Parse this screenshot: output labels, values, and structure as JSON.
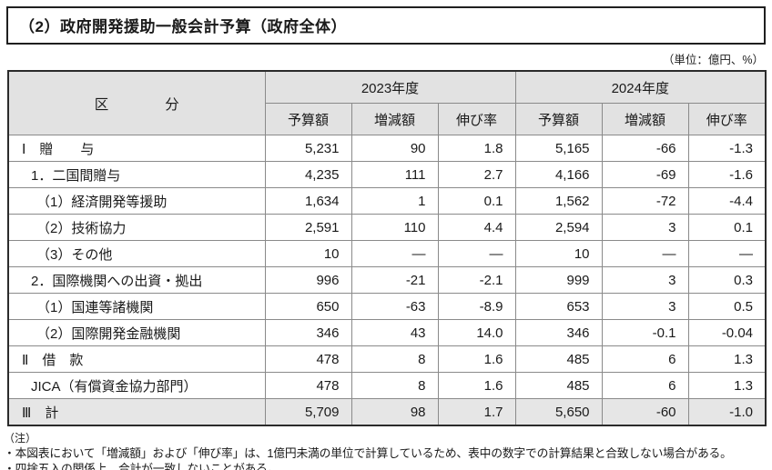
{
  "title": "（2）政府開発援助一般会計予算（政府全体）",
  "unit_label": "（単位：億円、%）",
  "table": {
    "category_header": "区　　　　分",
    "year_2023": "2023年度",
    "year_2024": "2024年度",
    "sub_headers": [
      "予算額",
      "増減額",
      "伸び率"
    ],
    "rows": [
      {
        "label": "Ⅰ　贈　　与",
        "indent": 0,
        "section_start": false,
        "total": false,
        "values": [
          "5,231",
          "90",
          "1.8",
          "5,165",
          "-66",
          "-1.3"
        ]
      },
      {
        "label": "1．二国間贈与",
        "indent": 1,
        "section_start": false,
        "total": false,
        "values": [
          "4,235",
          "111",
          "2.7",
          "4,166",
          "-69",
          "-1.6"
        ]
      },
      {
        "label": "（1）経済開発等援助",
        "indent": 2,
        "section_start": false,
        "total": false,
        "values": [
          "1,634",
          "1",
          "0.1",
          "1,562",
          "-72",
          "-4.4"
        ]
      },
      {
        "label": "（2）技術協力",
        "indent": 2,
        "section_start": false,
        "total": false,
        "values": [
          "2,591",
          "110",
          "4.4",
          "2,594",
          "3",
          "0.1"
        ]
      },
      {
        "label": "（3）その他",
        "indent": 2,
        "section_start": false,
        "total": false,
        "values": [
          "10",
          "—",
          "—",
          "10",
          "—",
          "—"
        ]
      },
      {
        "label": "2．国際機関への出資・拠出",
        "indent": 1,
        "section_start": false,
        "total": false,
        "values": [
          "996",
          "-21",
          "-2.1",
          "999",
          "3",
          "0.3"
        ]
      },
      {
        "label": "（1）国連等諸機関",
        "indent": 2,
        "section_start": false,
        "total": false,
        "values": [
          "650",
          "-63",
          "-8.9",
          "653",
          "3",
          "0.5"
        ]
      },
      {
        "label": "（2）国際開発金融機関",
        "indent": 2,
        "section_start": false,
        "total": false,
        "values": [
          "346",
          "43",
          "14.0",
          "346",
          "-0.1",
          "-0.04"
        ]
      },
      {
        "label": "Ⅱ　借　款",
        "indent": 0,
        "section_start": true,
        "total": false,
        "values": [
          "478",
          "8",
          "1.6",
          "485",
          "6",
          "1.3"
        ]
      },
      {
        "label": "JICA（有償資金協力部門）",
        "indent": 1,
        "section_start": false,
        "total": false,
        "values": [
          "478",
          "8",
          "1.6",
          "485",
          "6",
          "1.3"
        ]
      },
      {
        "label": "Ⅲ　計",
        "indent": 0,
        "section_start": true,
        "total": true,
        "values": [
          "5,709",
          "98",
          "1.7",
          "5,650",
          "-60",
          "-1.0"
        ]
      }
    ]
  },
  "notes": {
    "heading": "（注）",
    "items": [
      "・本図表において「増減額」および「伸び率」は、1億円未満の単位で計算しているため、表中の数字での計算結果と合致しない場合がある。",
      "・四捨五入の関係上、合計が一致しないことがある。"
    ]
  },
  "colors": {
    "header_bg": "#e2e2e2",
    "total_row_bg": "#e6e6e6",
    "outer_border": "#2b2b2b",
    "inner_border": "#8a8a8a",
    "text": "#1a1a1a"
  }
}
